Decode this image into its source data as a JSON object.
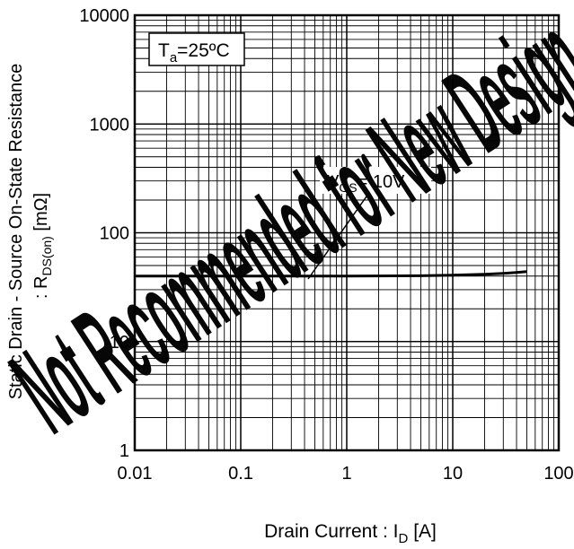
{
  "chart_data": {
    "type": "line",
    "x_scale": "log",
    "y_scale": "log",
    "xlim": [
      0.01,
      100
    ],
    "ylim": [
      1,
      10000
    ],
    "grid": true,
    "x_ticks": [
      "0.01",
      "0.1",
      "1",
      "10",
      "100"
    ],
    "y_ticks": [
      "1",
      "10",
      "100",
      "1000",
      "10000"
    ],
    "xlabel": {
      "main": "Drain Current : I",
      "sub": "D",
      "unit": " [A]"
    },
    "ylabel": {
      "line1": "Static Drain - Source On-State Resistance",
      "prefix": ": R",
      "sub": "DS(on)",
      "unit": " [mΩ]"
    },
    "condition": {
      "prefix": "T",
      "sub": "a",
      "value": "=25ºC"
    },
    "series": [
      {
        "label": {
          "prefix": "V",
          "sub": "GS",
          "value": "= 10V"
        },
        "x": [
          0.01,
          0.1,
          1,
          5,
          10,
          20,
          30,
          40,
          50
        ],
        "y": [
          40,
          40,
          40,
          40.3,
          40.8,
          41.6,
          42.4,
          43.2,
          44
        ]
      }
    ]
  },
  "watermark": "Not Recommended for New Design",
  "colors": {
    "line": "#000000",
    "grid": "#000000",
    "background": "#ffffff",
    "watermark": "#000000"
  }
}
